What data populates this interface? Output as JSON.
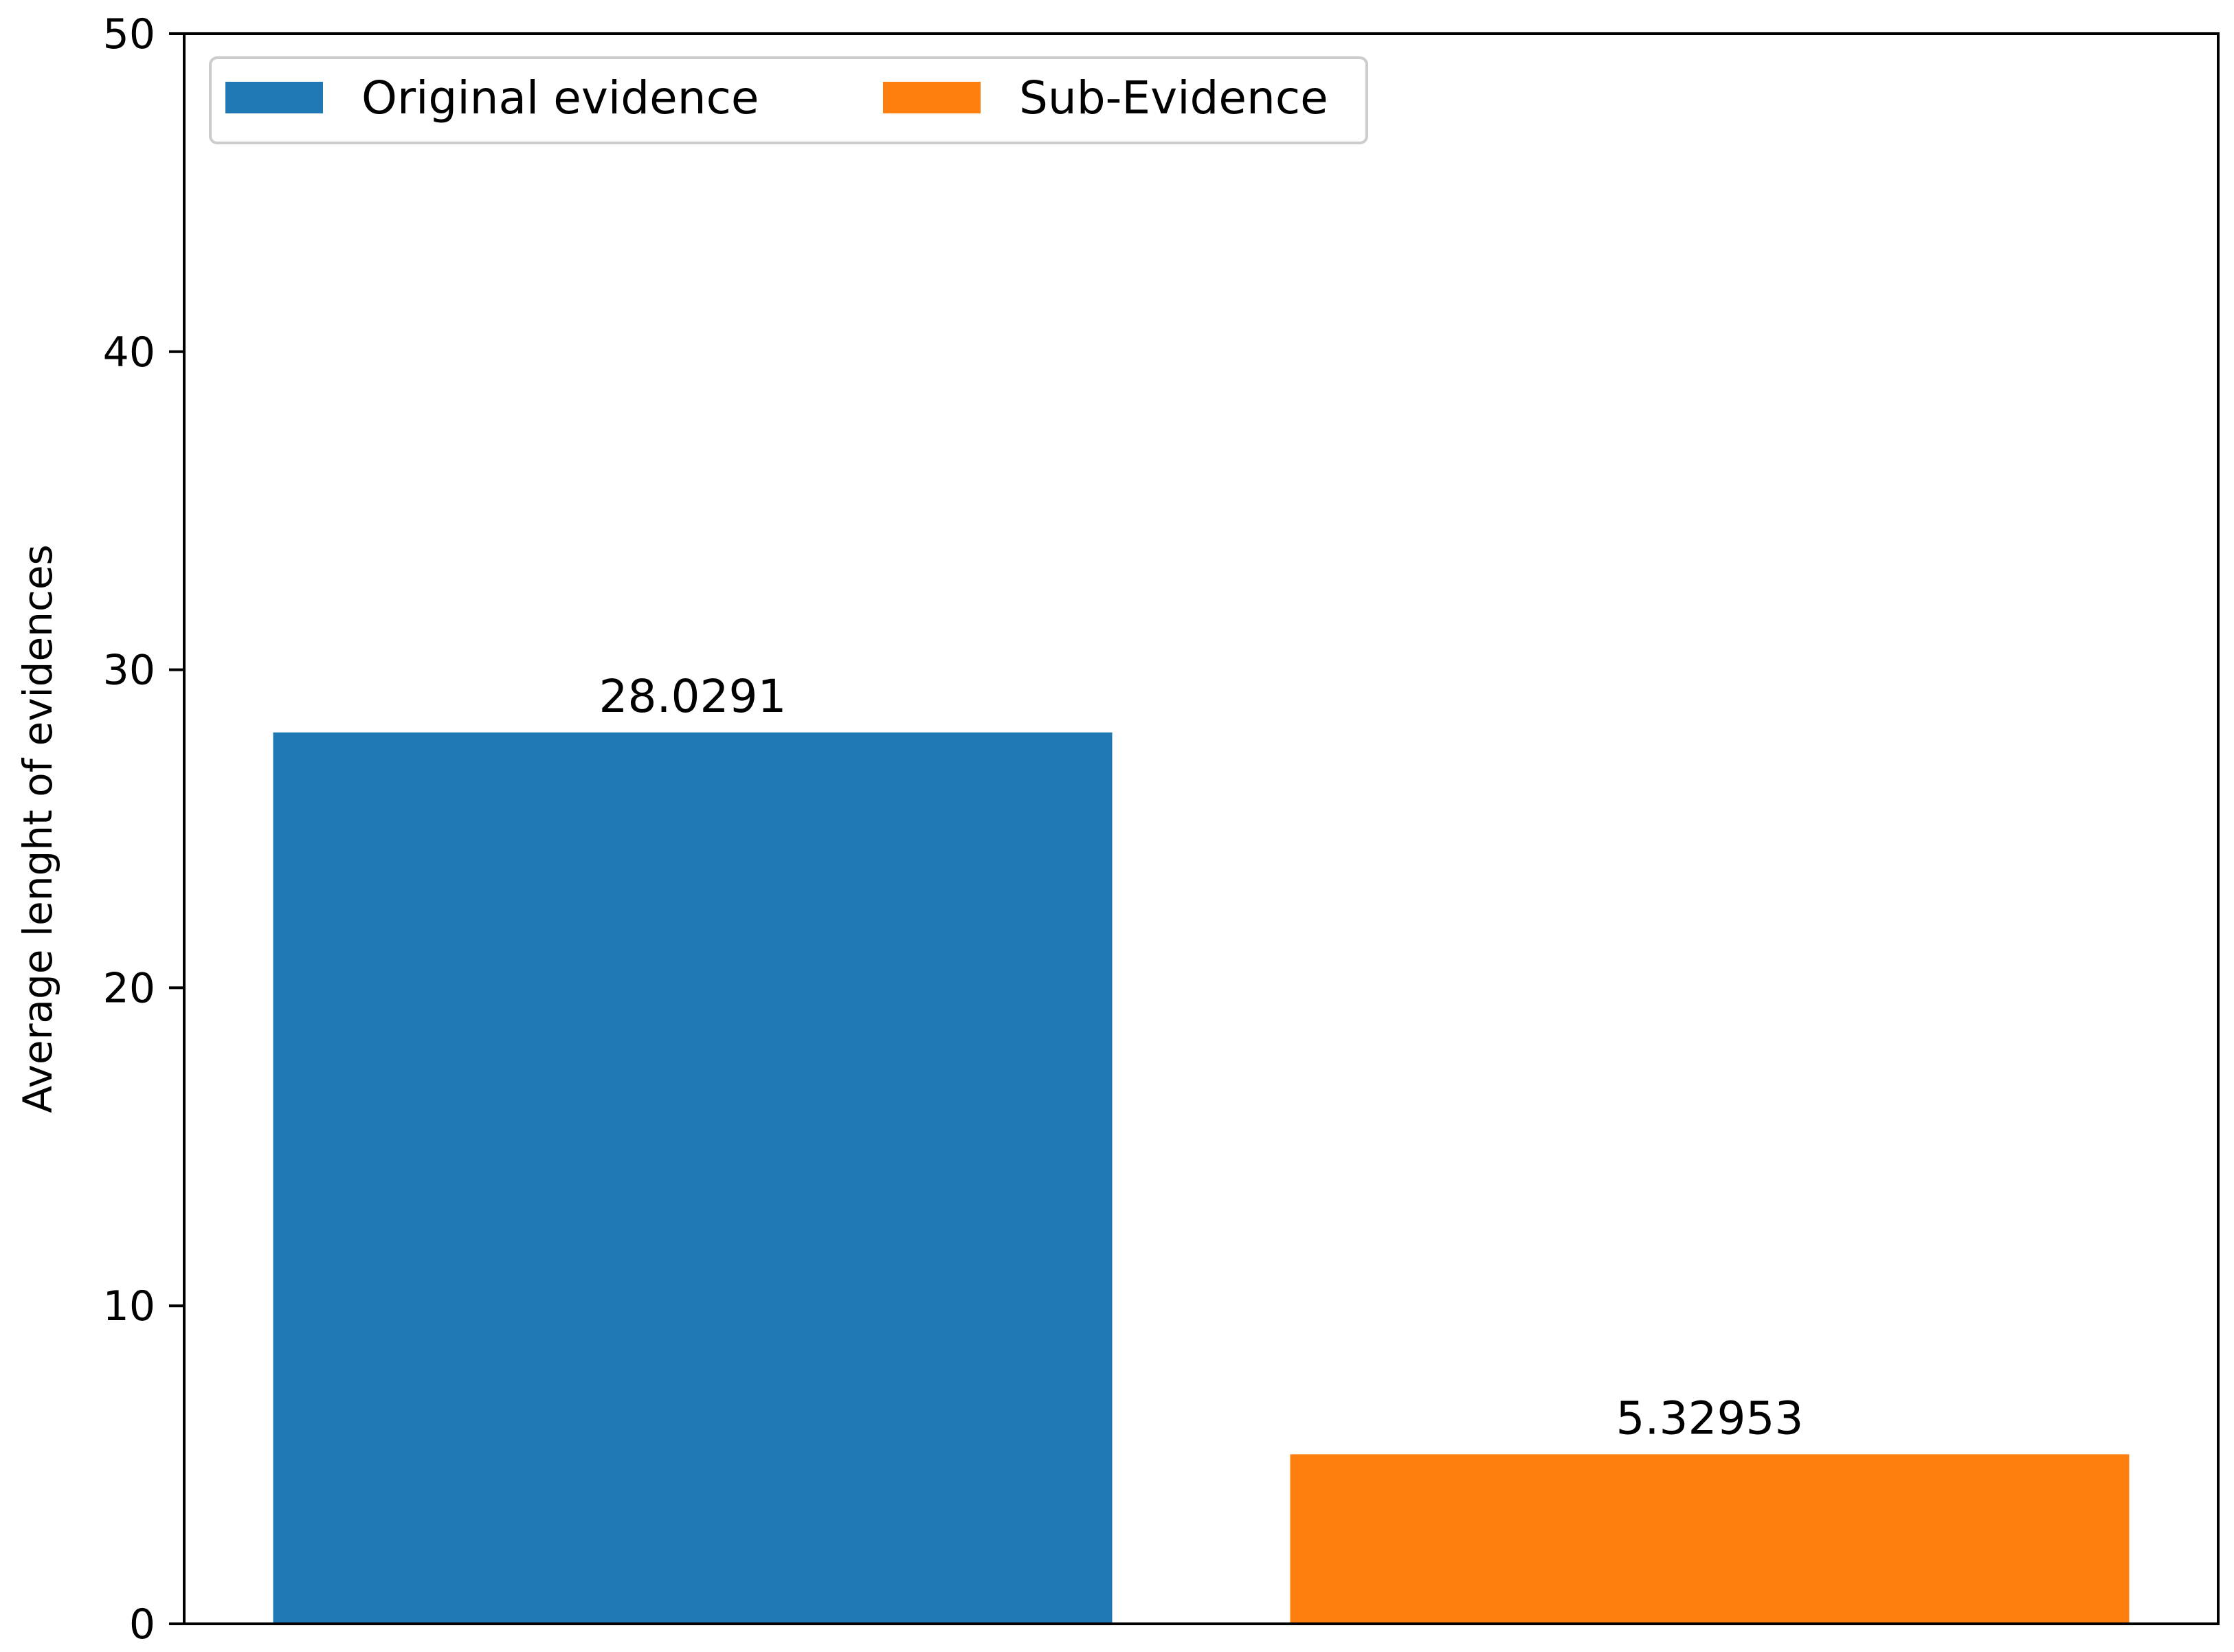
{
  "chart_data": {
    "type": "bar",
    "title": "",
    "xlabel": "",
    "ylabel": "Average lenght of evidences",
    "ylim": [
      0,
      50
    ],
    "yticks": [
      0,
      10,
      20,
      30,
      40,
      50
    ],
    "grid": false,
    "legend_position": "top-left",
    "series": [
      {
        "name": "Original evidence",
        "values": [
          28.0291
        ],
        "color": "#1f77b4",
        "data_label": "28.0291"
      },
      {
        "name": "Sub-Evidence",
        "values": [
          5.32953
        ],
        "color": "#ff7f0e",
        "data_label": "5.32953"
      }
    ]
  }
}
